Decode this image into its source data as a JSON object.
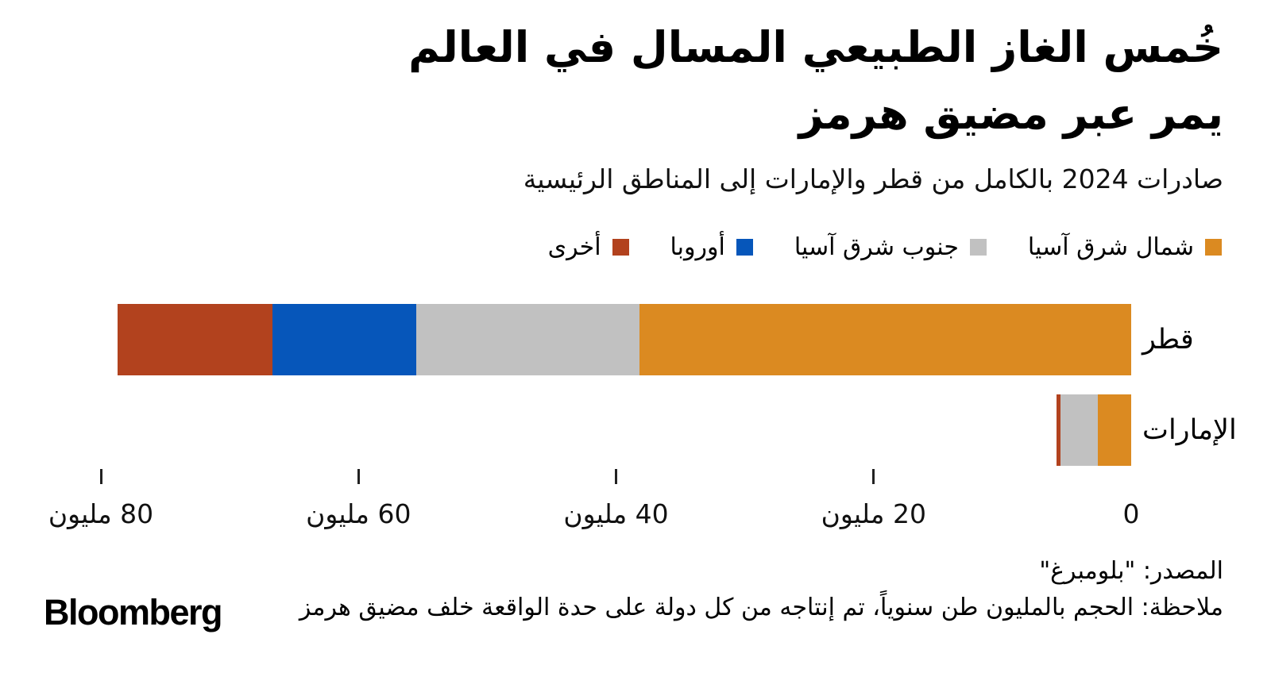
{
  "title": {
    "line1": "خُمس الغاز الطبيعي المسال في العالم",
    "line2": "يمر عبر مضيق هرمز"
  },
  "subtitle": "صادرات 2024 بالكامل من قطر والإمارات إلى المناطق الرئيسية",
  "colors": {
    "northeast_asia": "#DB8A21",
    "southeast_asia": "#C1C1C1",
    "europe": "#0656BA",
    "other": "#B2421E",
    "text": "#000000",
    "background": "#FFFFFF"
  },
  "chart_data": {
    "type": "bar",
    "orientation": "horizontal-rtl",
    "stacked": true,
    "unit": "مليون طن سنوياً",
    "categories": [
      "قطر",
      "الإمارات"
    ],
    "series": [
      {
        "name": "شمال شرق آسيا",
        "color": "#DB8A21",
        "values": [
          38.2,
          2.6
        ]
      },
      {
        "name": "جنوب شرق آسيا",
        "color": "#C1C1C1",
        "values": [
          17.3,
          2.9
        ]
      },
      {
        "name": "أوروبا",
        "color": "#0656BA",
        "values": [
          11.2,
          0
        ]
      },
      {
        "name": "أخرى",
        "color": "#B2421E",
        "values": [
          12.0,
          0.3
        ]
      }
    ],
    "totals": [
      78.7,
      5.8
    ],
    "xlim": [
      0,
      80
    ],
    "legend_position": "top-right",
    "grid": false,
    "axis": [
      {
        "value": 0,
        "label": "0",
        "tick": false
      },
      {
        "value": 20,
        "label": "20 مليون",
        "tick": true
      },
      {
        "value": 40,
        "label": "40 مليون",
        "tick": true
      },
      {
        "value": 60,
        "label": "60 مليون",
        "tick": true
      },
      {
        "value": 80,
        "label": "80 مليون",
        "tick": true
      }
    ]
  },
  "footer": {
    "source": "المصدر: \"بلومبرغ\"",
    "note": "ملاحظة: الحجم بالمليون طن سنوياً، تم إنتاجه من كل دولة على حدة الواقعة خلف مضيق هرمز",
    "logo": "Bloomberg"
  }
}
